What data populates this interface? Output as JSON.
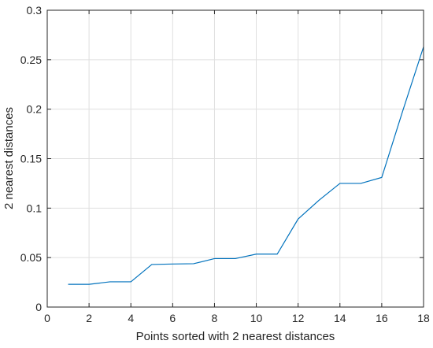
{
  "chart_data": {
    "type": "line",
    "xlabel": "Points sorted with 2 nearest distances",
    "ylabel": "2 nearest distances",
    "xlim": [
      0,
      18
    ],
    "ylim": [
      0,
      0.3
    ],
    "xticks": [
      0,
      2,
      4,
      6,
      8,
      10,
      12,
      14,
      16,
      18
    ],
    "yticks": [
      0,
      0.05,
      0.1,
      0.15,
      0.2,
      0.25,
      0.3
    ],
    "xtick_labels": [
      "0",
      "2",
      "4",
      "6",
      "8",
      "10",
      "12",
      "14",
      "16",
      "18"
    ],
    "ytick_labels": [
      "0",
      "0.05",
      "0.1",
      "0.15",
      "0.2",
      "0.25",
      "0.3"
    ],
    "grid": true,
    "series": [
      {
        "color": "#0072bd",
        "x": [
          1,
          2,
          3,
          4,
          5,
          6,
          7,
          8,
          9,
          10,
          11,
          12,
          13,
          14,
          15,
          16,
          17,
          18
        ],
        "y": [
          0.023,
          0.023,
          0.0255,
          0.0255,
          0.043,
          0.0435,
          0.0438,
          0.049,
          0.049,
          0.0535,
          0.0535,
          0.089,
          0.108,
          0.125,
          0.125,
          0.131,
          0.198,
          0.263
        ]
      }
    ]
  }
}
